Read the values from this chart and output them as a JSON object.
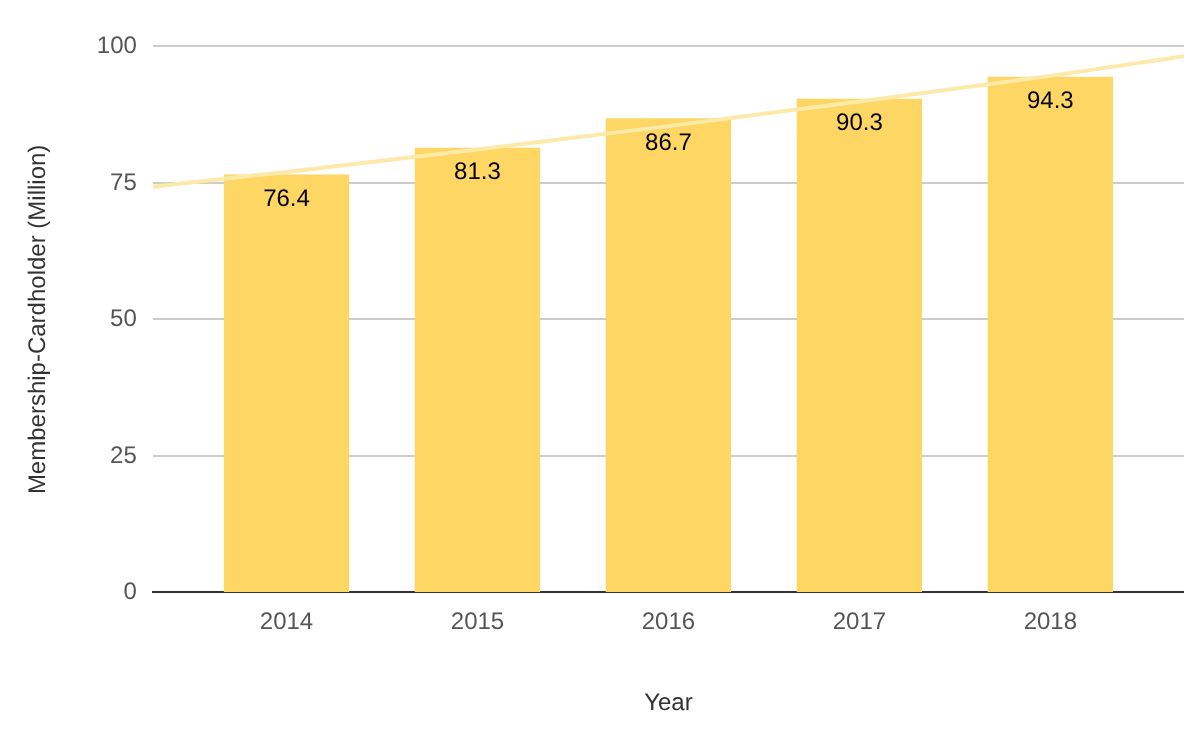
{
  "chart_data": {
    "type": "bar",
    "xlabel": "Year",
    "ylabel": "Membership-Cardholder (Million)",
    "x": [
      2014,
      2015,
      2016,
      2017,
      2018
    ],
    "xlim": [
      2013.3,
      2018.7
    ],
    "xticks": [
      2014,
      2015,
      2016,
      2017,
      2018
    ],
    "ylim": [
      0,
      100
    ],
    "yticks": [
      0,
      25,
      50,
      75,
      100
    ],
    "grid": "y",
    "legend": false,
    "series": [
      {
        "color": "#fdd663",
        "values": [
          76.4,
          81.3,
          86.7,
          90.3,
          94.3
        ],
        "value_labels": [
          "76.4",
          "81.3",
          "86.7",
          "90.3",
          "94.3"
        ]
      },
      {
        "type": "line",
        "color": "#fde9a8",
        "x": [
          2013.3,
          2014,
          2015,
          2016,
          2017,
          2018,
          2018.7
        ],
        "values": [
          74.3,
          77.0,
          81.1,
          85.4,
          89.9,
          94.6,
          98.2
        ]
      }
    ]
  }
}
